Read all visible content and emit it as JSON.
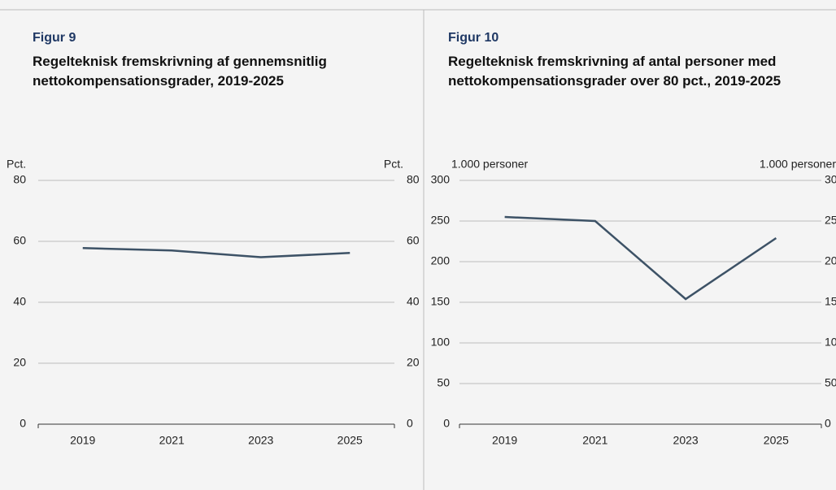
{
  "chart_data": [
    {
      "type": "line",
      "figure": "Figur 9",
      "title": "Regelteknisk fremskrivning af gennemsnitlig nettokompensationsgrader, 2019-2025",
      "ylabel": "Pct.",
      "categories": [
        "2019",
        "2021",
        "2023",
        "2025"
      ],
      "series": [
        {
          "color": "#3d5266",
          "values": [
            57.8,
            57.0,
            54.8,
            56.2
          ]
        }
      ],
      "ylim": [
        0,
        80
      ],
      "yticks": [
        0,
        20,
        40,
        60,
        80
      ],
      "grid": true
    },
    {
      "type": "line",
      "figure": "Figur 10",
      "title": "Regelteknisk fremskrivning af antal personer med nettokompensationsgrader over 80 pct., 2019-2025",
      "ylabel": "1.000 personer",
      "categories": [
        "2019",
        "2021",
        "2023",
        "2025"
      ],
      "series": [
        {
          "color": "#3d5266",
          "values": [
            255,
            250,
            154,
            229
          ]
        }
      ],
      "ylim": [
        0,
        300
      ],
      "yticks": [
        0,
        50,
        100,
        150,
        200,
        250,
        300
      ],
      "grid": true
    }
  ]
}
